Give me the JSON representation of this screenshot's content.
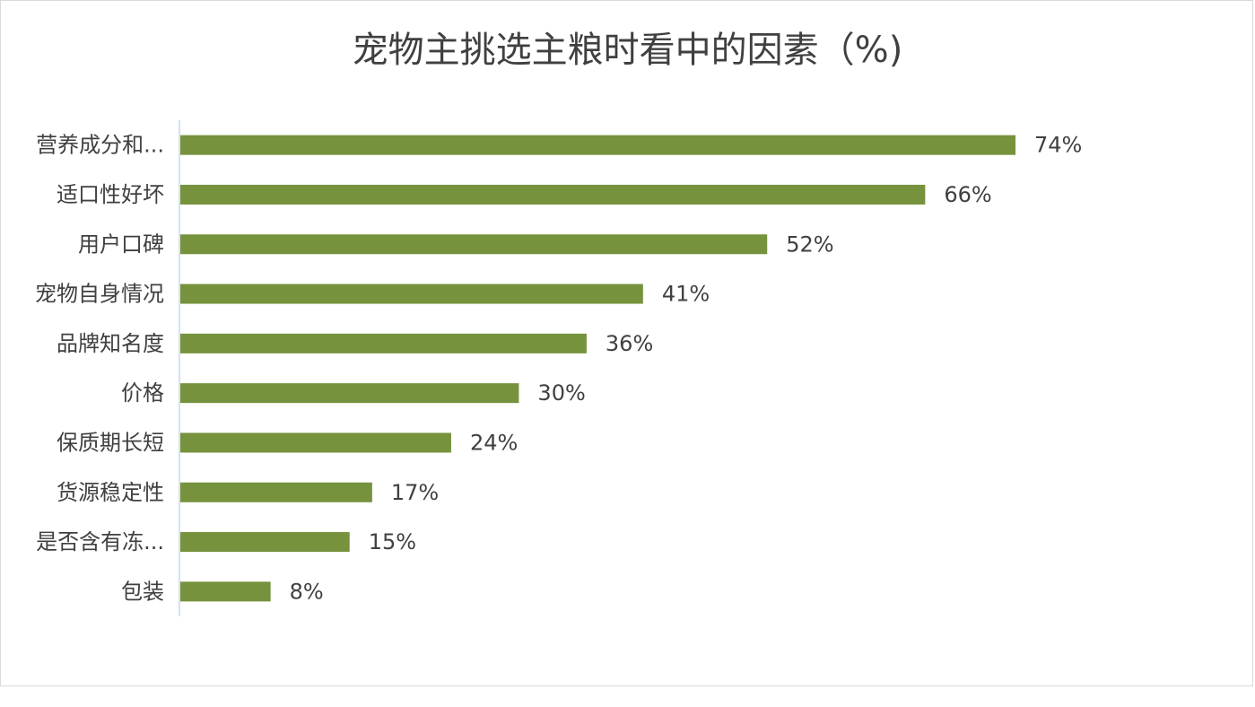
{
  "chart_data": {
    "type": "bar",
    "orientation": "horizontal",
    "title": "宠物主挑选主粮时看中的因素（%)",
    "categories": [
      "营养成分和...",
      "适口性好坏",
      "用户口碑",
      "宠物自身情况",
      "品牌知名度",
      "价格",
      "保质期长短",
      "货源稳定性",
      "是否含有冻...",
      "包装"
    ],
    "values": [
      74,
      66,
      52,
      41,
      36,
      30,
      24,
      17,
      15,
      8
    ],
    "data_labels": [
      "74%",
      "66%",
      "52%",
      "41%",
      "36%",
      "30%",
      "24%",
      "17%",
      "15%",
      "8%"
    ],
    "xlim": [
      0,
      100
    ],
    "grid": false,
    "legend": "none",
    "colors": {
      "bar": "#76923c",
      "axis": "#c6d9f1",
      "text": "#404040",
      "border": "#d9d9d9"
    }
  }
}
